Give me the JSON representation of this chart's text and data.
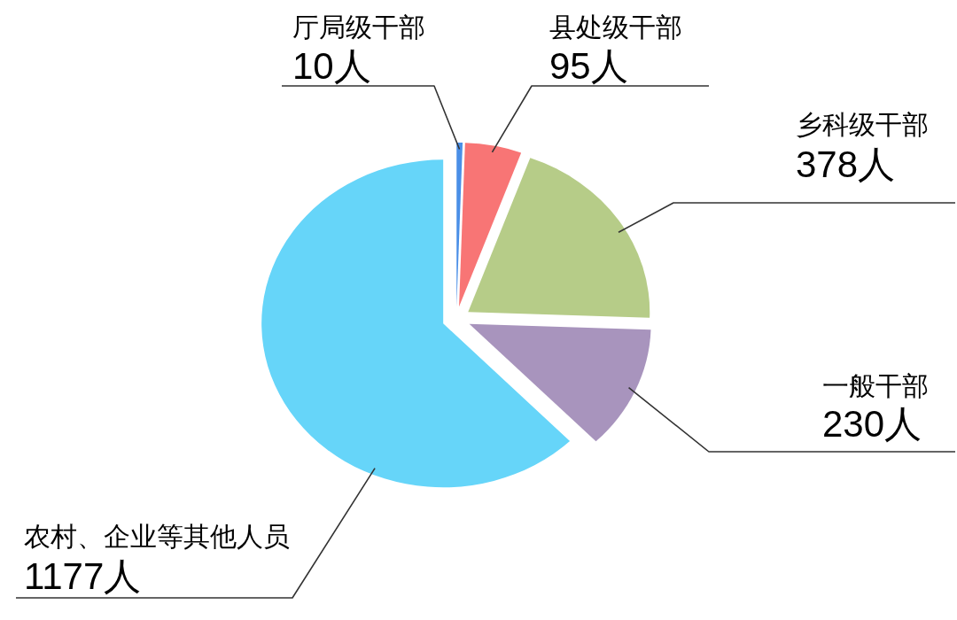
{
  "chart_data": {
    "type": "pie",
    "categories": [
      "厅局级干部",
      "县处级干部",
      "乡科级干部",
      "一般干部",
      "农村、企业等其他人员"
    ],
    "values": [
      10,
      95,
      378,
      230,
      1177
    ],
    "colors": [
      "#4a8fe7",
      "#f87575",
      "#b6cc88",
      "#a894bd",
      "#66d5f9"
    ],
    "value_labels": [
      "10人",
      "95人",
      "378人",
      "230人",
      "1177人"
    ]
  }
}
